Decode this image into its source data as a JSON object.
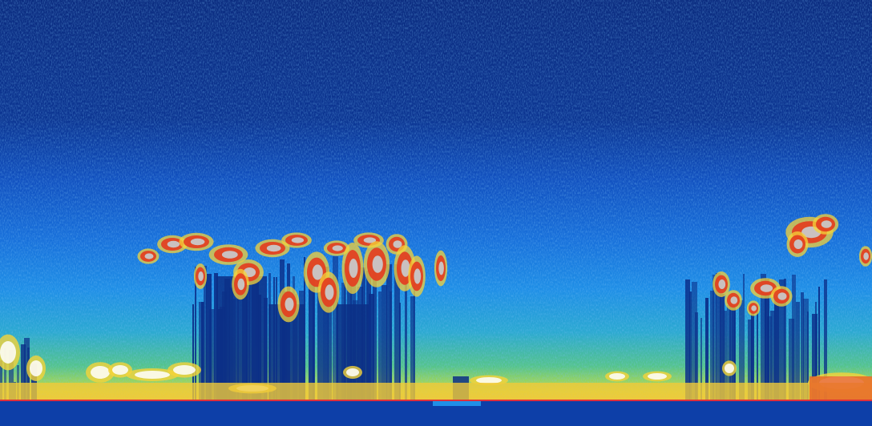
{
  "image": {
    "kind": "lidar-backscatter-curtain",
    "palette": [
      "#0a2a7a",
      "#0d3fa8",
      "#1463d6",
      "#1f8fe8",
      "#2bb3c9",
      "#6fd06a",
      "#e7e83a",
      "#f7a62a",
      "#e33b1f",
      "#c9c9c9",
      "#ffffff"
    ],
    "cloud_colors": {
      "core": "#c8c8c8",
      "edge": "#e33b1f",
      "fringe": "#f5d33a"
    },
    "surface_line_color": "#e0303a",
    "ground_color": "#0d3fa8"
  }
}
